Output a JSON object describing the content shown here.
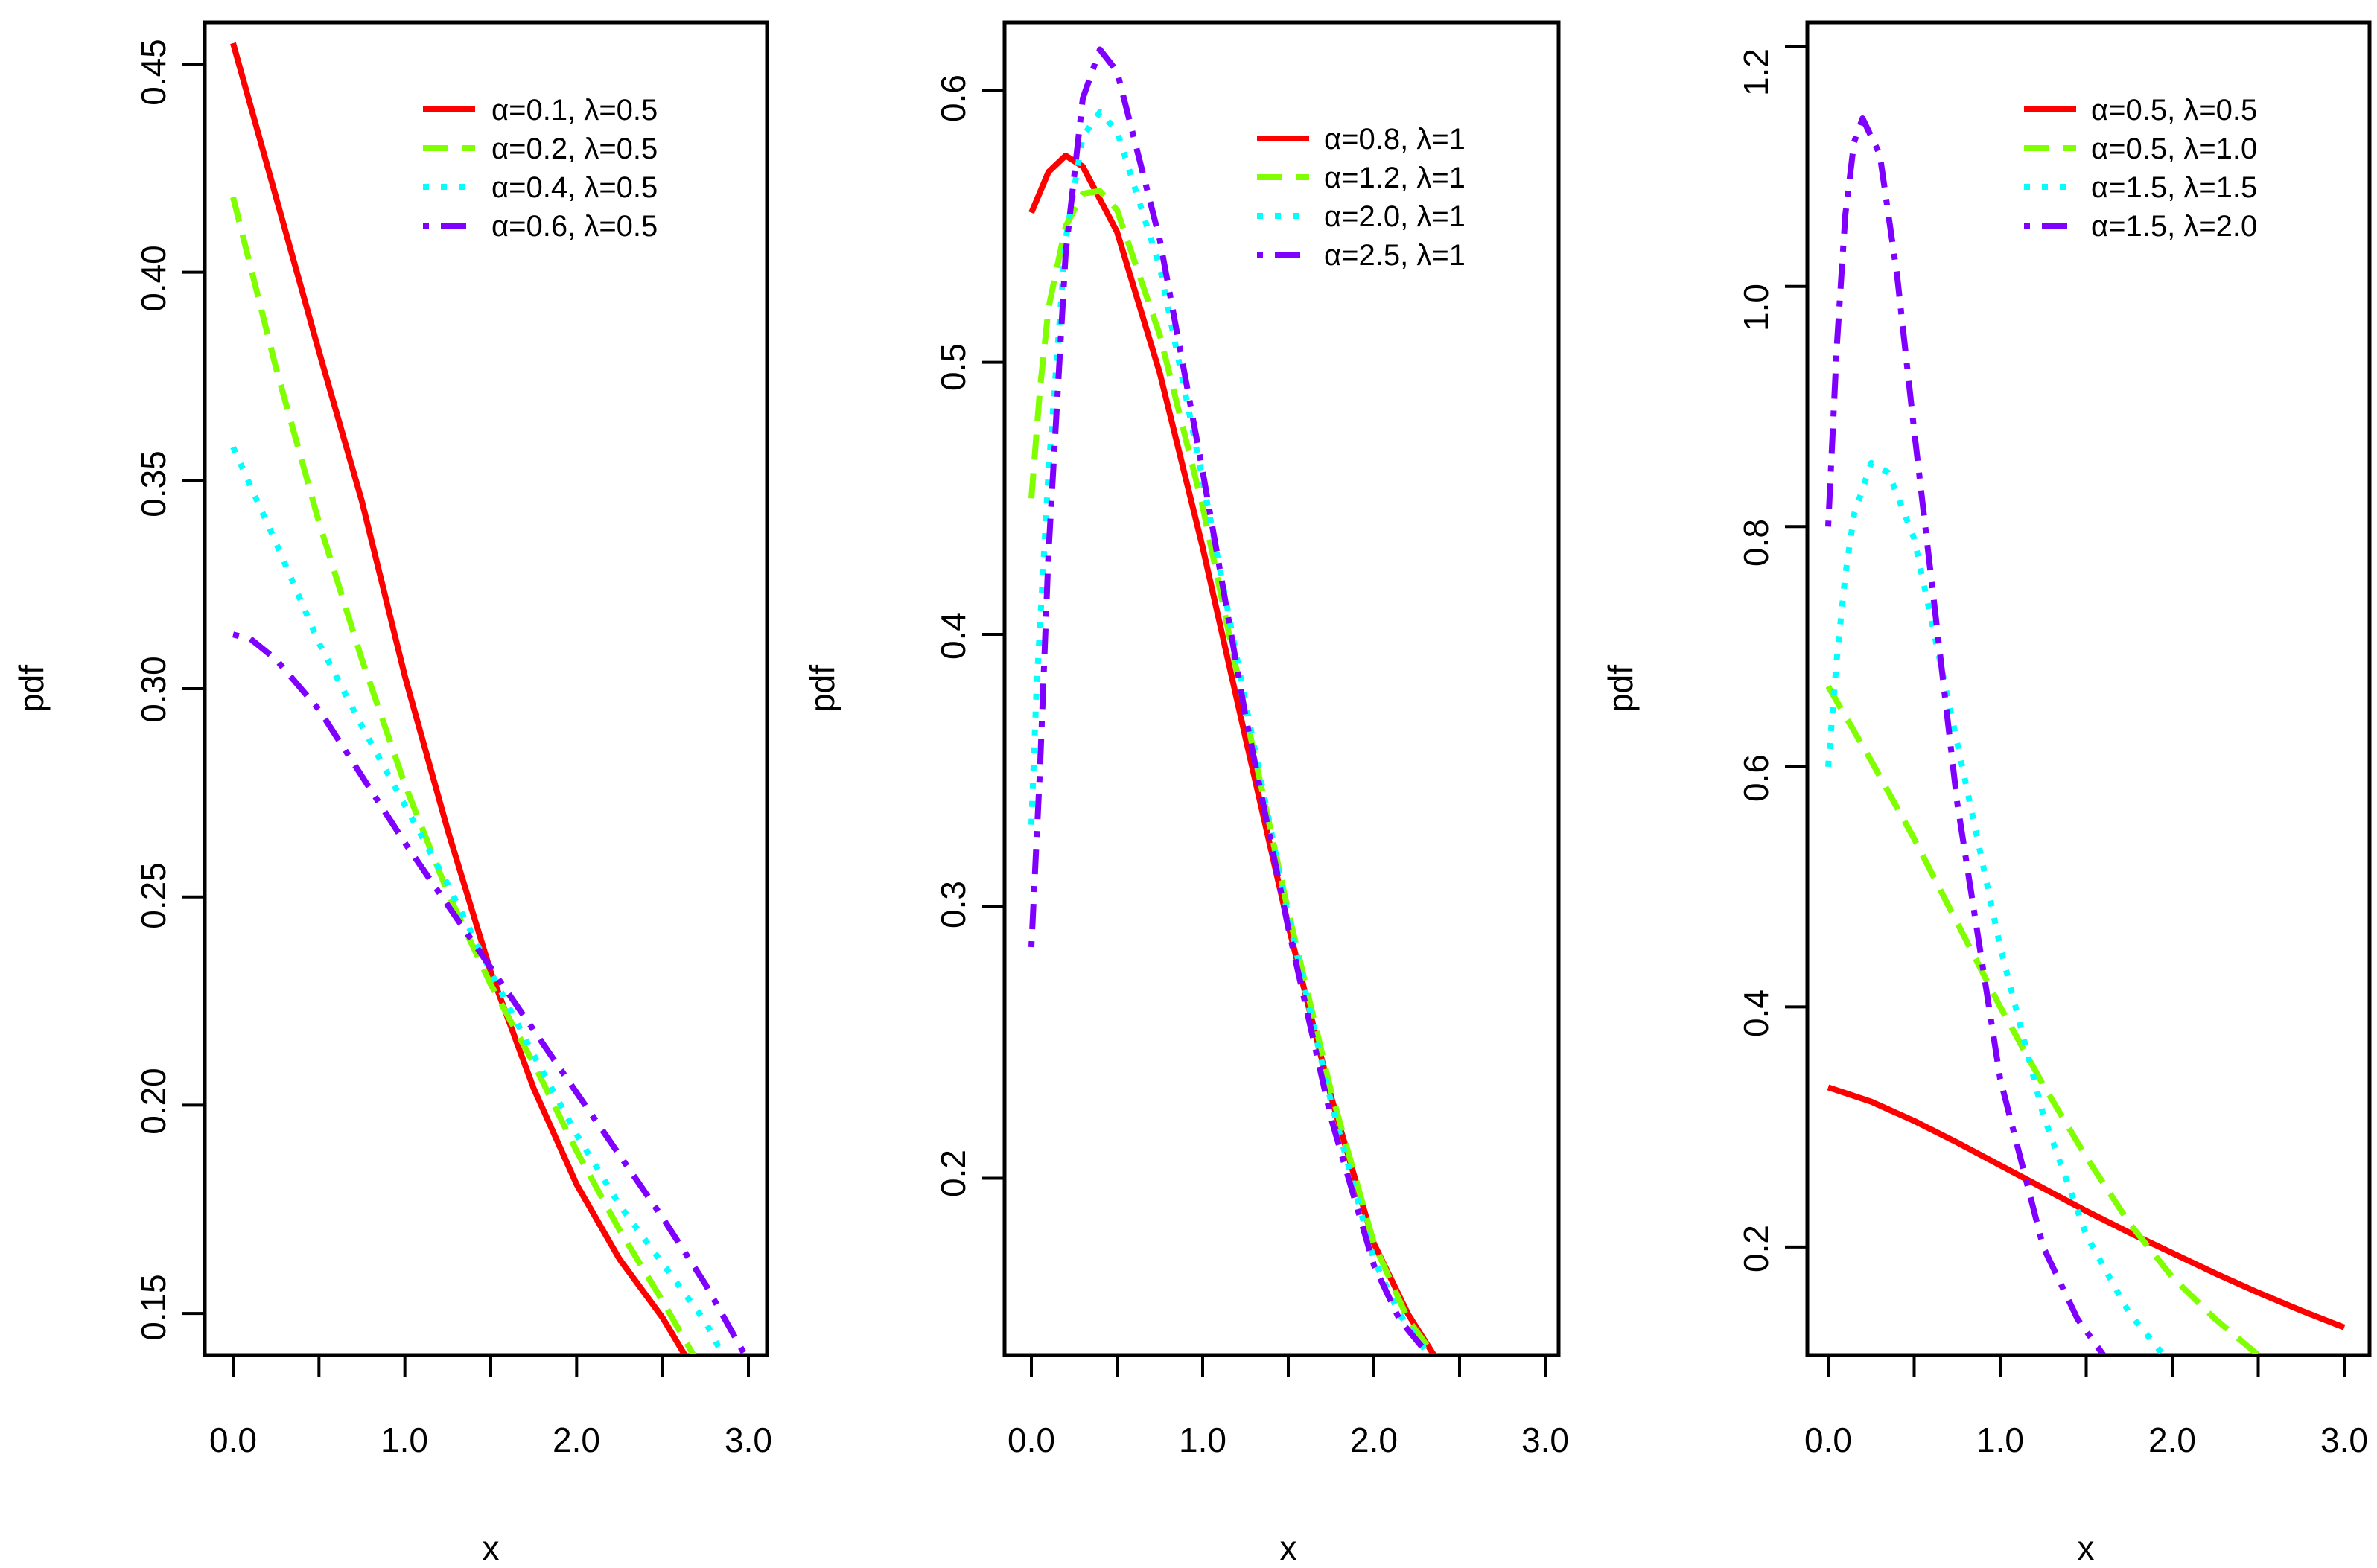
{
  "chart_data": [
    {
      "type": "line",
      "xlabel": "x",
      "ylabel": "pdf",
      "xlim": [
        0,
        3
      ],
      "ylim": [
        0.14,
        0.46
      ],
      "xticks": [
        0.0,
        0.5,
        1.0,
        1.5,
        2.0,
        2.5,
        3.0
      ],
      "xtick_labels": [
        "0.0",
        "1.0",
        "2.0",
        "3.0"
      ],
      "yticks": [
        0.15,
        0.2,
        0.25,
        0.3,
        0.35,
        0.4,
        0.45
      ],
      "ytick_labels": [
        "0.15",
        "0.20",
        "0.25",
        "0.30",
        "0.35",
        "0.40",
        "0.45"
      ],
      "legend_position": "top-right",
      "series": [
        {
          "name": "α=0.1, λ=0.5",
          "color": "#ff0000",
          "style": "solid",
          "x": [
            0,
            0.25,
            0.5,
            0.75,
            1.0,
            1.25,
            1.5,
            1.75,
            2.0,
            2.25,
            2.5,
            2.63
          ],
          "y": [
            0.455,
            0.418,
            0.381,
            0.345,
            0.303,
            0.266,
            0.232,
            0.204,
            0.181,
            0.163,
            0.149,
            0.14
          ]
        },
        {
          "name": "α=0.2, λ=0.5",
          "color": "#80ff00",
          "style": "dashed",
          "x": [
            0,
            0.25,
            0.5,
            0.75,
            1.0,
            1.25,
            1.5,
            1.75,
            2.0,
            2.25,
            2.5,
            2.68
          ],
          "y": [
            0.418,
            0.377,
            0.34,
            0.307,
            0.277,
            0.251,
            0.229,
            0.21,
            0.189,
            0.17,
            0.153,
            0.14
          ]
        },
        {
          "name": "α=0.4, λ=0.5",
          "color": "#00ffff",
          "style": "dotted",
          "x": [
            0,
            0.25,
            0.5,
            0.75,
            1.0,
            1.25,
            1.5,
            1.75,
            2.0,
            2.25,
            2.5,
            2.75,
            2.85
          ],
          "y": [
            0.358,
            0.335,
            0.311,
            0.291,
            0.272,
            0.253,
            0.232,
            0.212,
            0.193,
            0.176,
            0.162,
            0.148,
            0.14
          ]
        },
        {
          "name": "α=0.6, λ=0.5",
          "color": "#7f00ff",
          "style": "dotdash",
          "x": [
            0,
            0.1,
            0.25,
            0.5,
            0.75,
            1.0,
            1.25,
            1.5,
            1.75,
            2.0,
            2.25,
            2.5,
            2.75,
            2.98
          ],
          "y": [
            0.313,
            0.312,
            0.307,
            0.295,
            0.279,
            0.263,
            0.248,
            0.233,
            0.218,
            0.203,
            0.188,
            0.173,
            0.157,
            0.14
          ]
        }
      ]
    },
    {
      "type": "line",
      "xlabel": "x",
      "ylabel": "pdf",
      "xlim": [
        0,
        3
      ],
      "ylim": [
        0.135,
        0.625
      ],
      "xticks": [
        0.0,
        0.5,
        1.0,
        1.5,
        2.0,
        2.5,
        3.0
      ],
      "xtick_labels": [
        "0.0",
        "1.0",
        "2.0",
        "3.0"
      ],
      "yticks": [
        0.2,
        0.3,
        0.4,
        0.5,
        0.6
      ],
      "ytick_labels": [
        "0.2",
        "0.3",
        "0.4",
        "0.5",
        "0.6"
      ],
      "legend_position": "top-right",
      "series": [
        {
          "name": "α=0.8, λ=1",
          "color": "#ff0000",
          "style": "solid",
          "x": [
            0,
            0.1,
            0.2,
            0.3,
            0.5,
            0.75,
            1.0,
            1.25,
            1.5,
            1.75,
            2.0,
            2.2,
            2.35
          ],
          "y": [
            0.555,
            0.57,
            0.576,
            0.572,
            0.548,
            0.496,
            0.432,
            0.362,
            0.293,
            0.23,
            0.176,
            0.15,
            0.135
          ]
        },
        {
          "name": "α=1.2, λ=1",
          "color": "#80ff00",
          "style": "dashed",
          "x": [
            0,
            0.05,
            0.1,
            0.2,
            0.3,
            0.4,
            0.5,
            0.75,
            1.0,
            1.25,
            1.5,
            1.75,
            2.0,
            2.2,
            2.35
          ],
          "y": [
            0.45,
            0.49,
            0.52,
            0.55,
            0.562,
            0.563,
            0.556,
            0.51,
            0.447,
            0.371,
            0.298,
            0.232,
            0.176,
            0.148,
            0.135
          ]
        },
        {
          "name": "α=2.0, λ=1",
          "color": "#00ffff",
          "style": "dotted",
          "x": [
            0,
            0.03,
            0.1,
            0.2,
            0.3,
            0.4,
            0.5,
            0.75,
            1.0,
            1.25,
            1.5,
            1.75,
            2.0,
            2.15,
            2.32
          ],
          "y": [
            0.33,
            0.38,
            0.46,
            0.545,
            0.583,
            0.592,
            0.585,
            0.535,
            0.457,
            0.375,
            0.296,
            0.228,
            0.17,
            0.15,
            0.135
          ]
        },
        {
          "name": "α=2.5, λ=1",
          "color": "#7f00ff",
          "style": "dotdash",
          "x": [
            0,
            0.05,
            0.1,
            0.2,
            0.3,
            0.4,
            0.5,
            0.75,
            1.0,
            1.25,
            1.5,
            1.75,
            2.0,
            2.15,
            2.32
          ],
          "y": [
            0.285,
            0.35,
            0.43,
            0.54,
            0.597,
            0.615,
            0.607,
            0.545,
            0.46,
            0.37,
            0.292,
            0.222,
            0.168,
            0.148,
            0.135
          ]
        }
      ]
    },
    {
      "type": "line",
      "xlabel": "x",
      "ylabel": "pdf",
      "xlim": [
        0,
        3
      ],
      "ylim": [
        0.11,
        1.22
      ],
      "xticks": [
        0.0,
        0.5,
        1.0,
        1.5,
        2.0,
        2.5,
        3.0
      ],
      "xtick_labels": [
        "0.0",
        "1.0",
        "2.0",
        "3.0"
      ],
      "yticks": [
        0.2,
        0.4,
        0.6,
        0.8,
        1.0,
        1.2
      ],
      "ytick_labels": [
        "0.2",
        "0.4",
        "0.6",
        "0.8",
        "1.0",
        "1.2"
      ],
      "legend_position": "top-right",
      "series": [
        {
          "name": "α=0.5, λ=0.5",
          "color": "#ff0000",
          "style": "solid",
          "x": [
            0,
            0.25,
            0.5,
            0.75,
            1.0,
            1.25,
            1.5,
            1.75,
            2.0,
            2.25,
            2.5,
            2.75,
            3.0
          ],
          "y": [
            0.333,
            0.321,
            0.305,
            0.287,
            0.268,
            0.249,
            0.23,
            0.212,
            0.195,
            0.178,
            0.162,
            0.147,
            0.133
          ]
        },
        {
          "name": "α=0.5, λ=1.0",
          "color": "#80ff00",
          "style": "dashed",
          "x": [
            0,
            0.25,
            0.5,
            0.75,
            1.0,
            1.25,
            1.5,
            1.75,
            2.0,
            2.25,
            2.5
          ],
          "y": [
            0.667,
            0.605,
            0.54,
            0.47,
            0.4,
            0.335,
            0.275,
            0.22,
            0.175,
            0.14,
            0.11
          ]
        },
        {
          "name": "α=1.5, λ=1.5",
          "color": "#00ffff",
          "style": "dotted",
          "x": [
            0,
            0.05,
            0.1,
            0.15,
            0.25,
            0.35,
            0.5,
            0.75,
            1.0,
            1.25,
            1.5,
            1.75,
            1.95
          ],
          "y": [
            0.6,
            0.69,
            0.76,
            0.81,
            0.853,
            0.845,
            0.79,
            0.62,
            0.45,
            0.31,
            0.21,
            0.145,
            0.11
          ]
        },
        {
          "name": "α=1.5, λ=2.0",
          "color": "#7f00ff",
          "style": "dotdash",
          "x": [
            0,
            0.05,
            0.1,
            0.15,
            0.2,
            0.3,
            0.4,
            0.5,
            0.75,
            1.0,
            1.25,
            1.45,
            1.6
          ],
          "y": [
            0.8,
            0.95,
            1.06,
            1.12,
            1.14,
            1.11,
            1.01,
            0.88,
            0.57,
            0.34,
            0.2,
            0.14,
            0.11
          ]
        }
      ]
    }
  ]
}
